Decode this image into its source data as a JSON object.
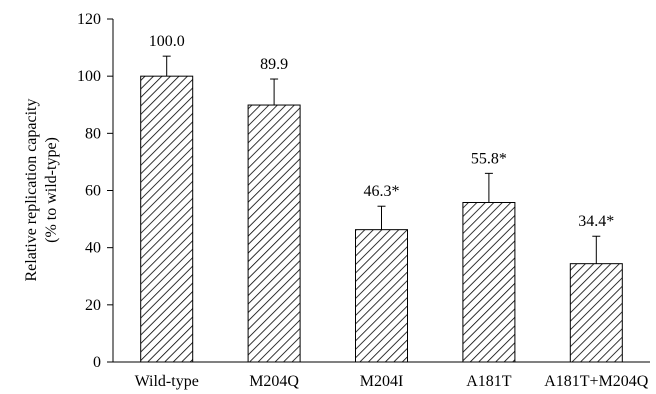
{
  "chart_data": {
    "type": "bar",
    "categories": [
      "Wild-type",
      "M204Q",
      "M204I",
      "A181T",
      "A181T+M204Q"
    ],
    "values": [
      100.0,
      89.9,
      46.3,
      55.8,
      34.4
    ],
    "error_upper": [
      107,
      99,
      54.5,
      66,
      44
    ],
    "data_labels": [
      "100.0",
      "89.9",
      "46.3*",
      "55.8*",
      "34.4*"
    ],
    "ylabel_line1": "Relative replication capacity",
    "ylabel_line2": "(% to wild-type)",
    "ylim": [
      0,
      120
    ],
    "yticks": [
      0,
      20,
      40,
      60,
      80,
      100,
      120
    ],
    "grid": false,
    "bar_fill": "hatched",
    "colors": {
      "axis": "#000000",
      "hatch": "#000000",
      "background": "#ffffff"
    }
  }
}
